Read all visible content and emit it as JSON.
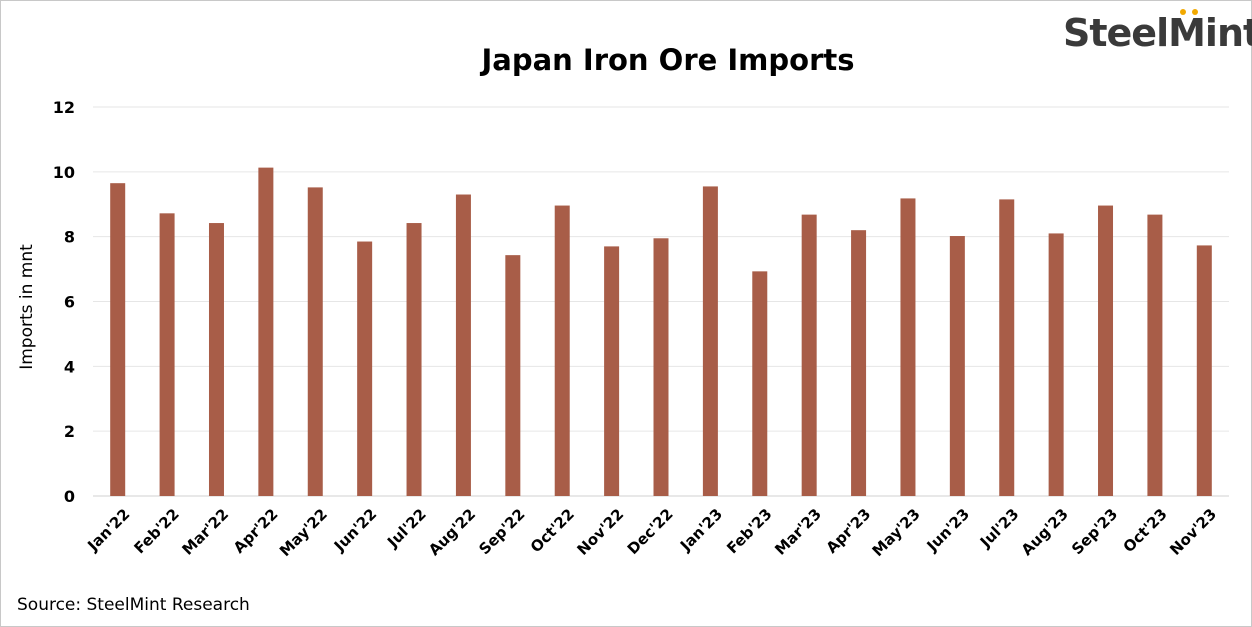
{
  "logo": {
    "text": "SteelMint",
    "dot_color": "#f2a900"
  },
  "source": "Source: SteelMint Research",
  "colors": {
    "bar": "#a85d48",
    "grid": "#e6e6e6",
    "axis": "#d0d0d0"
  },
  "chart_data": {
    "type": "bar",
    "title": "Japan Iron Ore Imports",
    "xlabel": "",
    "ylabel": "Imports in mnt",
    "ylim": [
      0,
      12
    ],
    "yticks": [
      0,
      2,
      4,
      6,
      8,
      10,
      12
    ],
    "grid": true,
    "legend": "none",
    "categories": [
      "Jan'22",
      "Feb'22",
      "Mar'22",
      "Apr'22",
      "May'22",
      "Jun'22",
      "Jul'22",
      "Aug'22",
      "Sep'22",
      "Oct'22",
      "Nov'22",
      "Dec'22",
      "Jan'23",
      "Feb'23",
      "Mar'23",
      "Apr'23",
      "May'23",
      "Jun'23",
      "Jul'23",
      "Aug'23",
      "Sep'23",
      "Oct'23",
      "Nov'23"
    ],
    "values": [
      9.65,
      8.72,
      8.42,
      10.13,
      9.52,
      7.85,
      8.42,
      9.3,
      7.43,
      8.96,
      7.7,
      7.95,
      9.55,
      6.93,
      8.68,
      8.2,
      9.18,
      8.02,
      9.15,
      8.1,
      8.96,
      8.68,
      7.73
    ]
  }
}
